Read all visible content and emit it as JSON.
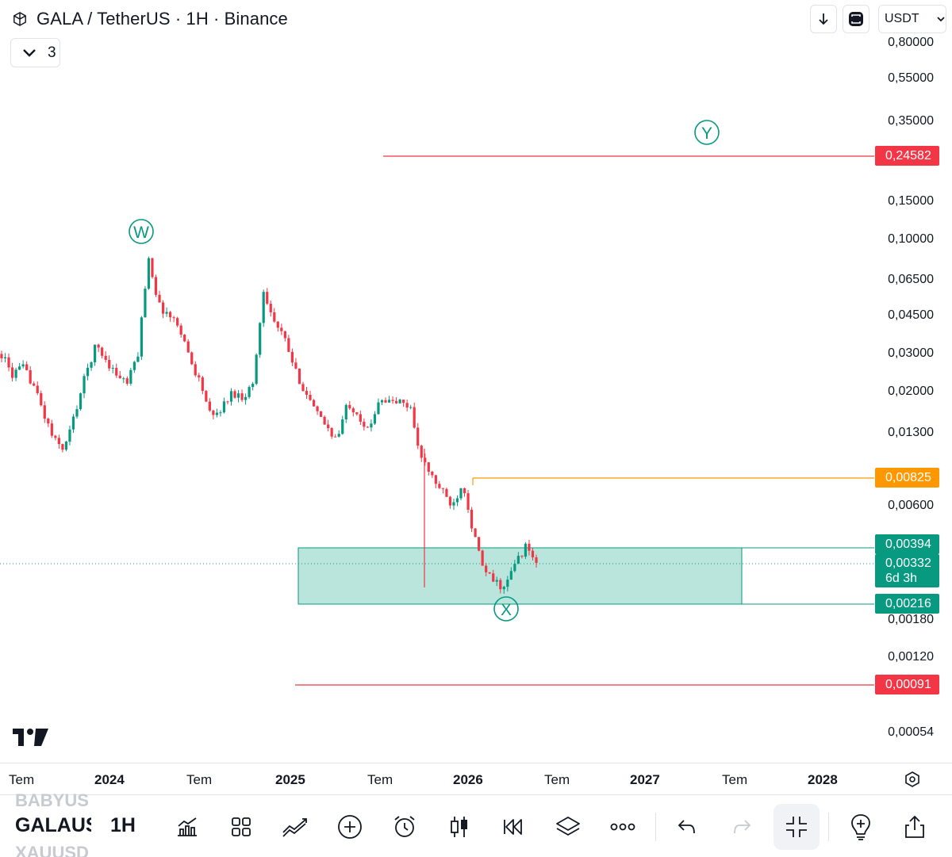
{
  "header": {
    "title": "GALA / TetherUS · 1H · Binance",
    "collapse_count": "3",
    "currency": "USDT"
  },
  "price_axis": {
    "labels": [
      "0,80000",
      "0,55000",
      "0,35000",
      "0,15000",
      "0,10000",
      "0,06500",
      "0,04500",
      "0,03000",
      "0,02000",
      "0,01300",
      "0,00600",
      "0,00180",
      "0,00120",
      "0,00054"
    ]
  },
  "price_tags": {
    "resistance_high": "0,24582",
    "fib_level": "0,00825",
    "zone_top": "0,00394",
    "current_price": "0,00332",
    "countdown": "6d 3h",
    "zone_bottom": "0,00216",
    "support_low": "0,00091"
  },
  "wave_labels": {
    "w": "W",
    "x": "X",
    "y": "Y"
  },
  "time_axis": {
    "labels": [
      "Tem",
      "2024",
      "Tem",
      "2025",
      "Tem",
      "2026",
      "Tem",
      "2027",
      "Tem",
      "2028"
    ]
  },
  "toolbar": {
    "symbol_prev": "BABYUS",
    "symbol_current": "GALAUS",
    "symbol_next": "XAUUSD",
    "interval": "1H"
  },
  "colors": {
    "up": "#089981",
    "down": "#f23645",
    "orange": "#ff9800",
    "zone_fill": "#b9e5dc"
  },
  "chart_data": {
    "type": "candlestick",
    "symbol": "GALA / TetherUS",
    "interval": "1H",
    "exchange": "Binance",
    "scale": "log",
    "y_ticks": [
      0.8,
      0.55,
      0.35,
      0.15,
      0.1,
      0.065,
      0.045,
      0.03,
      0.02,
      0.013,
      0.006,
      0.0018,
      0.0012,
      0.00054
    ],
    "x_ticks": [
      "Tem",
      "2024",
      "Tem",
      "2025",
      "Tem",
      "2026",
      "Tem",
      "2027",
      "Tem",
      "2028"
    ],
    "close_path": [
      0.03,
      0.024,
      0.026,
      0.022,
      0.016,
      0.012,
      0.011,
      0.016,
      0.024,
      0.033,
      0.028,
      0.024,
      0.022,
      0.03,
      0.085,
      0.05,
      0.045,
      0.04,
      0.028,
      0.022,
      0.015,
      0.017,
      0.02,
      0.019,
      0.022,
      0.06,
      0.042,
      0.035,
      0.025,
      0.02,
      0.016,
      0.014,
      0.012,
      0.018,
      0.016,
      0.013,
      0.019,
      0.018,
      0.018,
      0.017,
      0.01,
      0.0082,
      0.007,
      0.006,
      0.0078,
      0.0045,
      0.003,
      0.0027,
      0.0025,
      0.0033,
      0.0039,
      0.0033
    ],
    "levels": [
      {
        "price": 0.24582,
        "color": "#f23645"
      },
      {
        "price": 0.00825,
        "color": "#ff9800"
      },
      {
        "price": 0.00091,
        "color": "#f23645"
      }
    ],
    "zone": {
      "top": 0.00394,
      "bottom": 0.00216
    },
    "current_price": 0.00332,
    "wave_points": [
      {
        "label": "W",
        "price": 0.085
      },
      {
        "label": "X",
        "price": 0.0025
      },
      {
        "label": "Y",
        "price": 0.35
      }
    ]
  }
}
